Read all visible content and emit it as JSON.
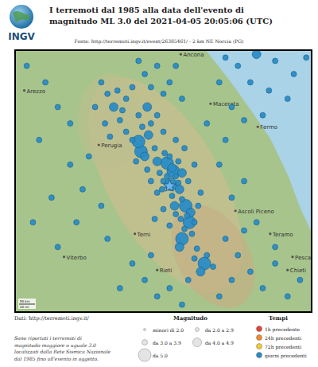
{
  "chart_data": {
    "type": "scatter",
    "logo": "INGV",
    "title": [
      "I terremoti dal 1985 alla data dell'evento di",
      "magnitudo ML 3.0 del 2021-04-05 20:05:06 (UTC)"
    ],
    "source": "Fonte: http://terremoti.ingv.it/event/26385461/ - 2 km NE Norcia (PG)",
    "credit": "Dati: http://terremoti.ingv.it/",
    "note": [
      "Sono riportati i terremoti di",
      "magnitudo maggiore o uguale 3.0",
      "localizzati dalla Rete Sismica Nazionale",
      "dal 1985 fino all'evento in oggetto."
    ],
    "xlim": [
      11.85,
      14.25
    ],
    "ylim": [
      42.05,
      43.65
    ],
    "tick_labels": false,
    "scale_bar": [
      "50 km",
      "20 mi"
    ],
    "event": {
      "x": 13.1,
      "y": 42.82,
      "marker": "star",
      "color": "#6bb8e8"
    },
    "cities": [
      {
        "name": "Arezzo",
        "x": 11.93,
        "y": 43.4
      },
      {
        "name": "Ancona",
        "x": 13.19,
        "y": 43.62
      },
      {
        "name": "Macerata",
        "x": 13.43,
        "y": 43.32
      },
      {
        "name": "Perugia",
        "x": 12.53,
        "y": 43.07
      },
      {
        "name": "Fermo",
        "x": 13.81,
        "y": 43.18
      },
      {
        "name": "Ascoli Piceno",
        "x": 13.63,
        "y": 42.67
      },
      {
        "name": "Teramo",
        "x": 13.91,
        "y": 42.53
      },
      {
        "name": "Terni",
        "x": 12.82,
        "y": 42.53
      },
      {
        "name": "Pescara",
        "x": 14.09,
        "y": 42.39
      },
      {
        "name": "Viterbo",
        "x": 12.25,
        "y": 42.39
      },
      {
        "name": "Rieti",
        "x": 13.0,
        "y": 42.31
      },
      {
        "name": "Chieti",
        "x": 14.05,
        "y": 42.31
      }
    ],
    "magnitude_legend": {
      "title": "Magnitudo",
      "classes": [
        {
          "label": "minori di 2.0",
          "min": null
        },
        {
          "label": "da 2.0 a 2.9",
          "min": 2.0
        },
        {
          "label": "da 3.0 a 3.9",
          "min": 3.0
        },
        {
          "label": "da 4.0 a 4.9",
          "min": 4.0
        },
        {
          "label": "da 5.0",
          "min": 5.0
        }
      ]
    },
    "time_legend": {
      "title": "Tempi",
      "classes": [
        {
          "label": "1h precedente",
          "color": "#e0463a"
        },
        {
          "label": "24h precedenti",
          "color": "#f08a2e"
        },
        {
          "label": "72h precedenti",
          "color": "#f3c93c"
        },
        {
          "label": "giorni precedenti",
          "color": "#2b8cc4"
        }
      ]
    },
    "series": [
      {
        "name": "giorni precedenti",
        "points": [
          [
            13.11,
            42.83,
            6.5
          ],
          [
            13.13,
            42.91,
            5.9
          ],
          [
            13.23,
            42.7,
            6.0
          ],
          [
            13.2,
            42.5,
            5.5
          ],
          [
            13.38,
            42.35,
            6.1
          ],
          [
            12.87,
            43.03,
            6.0
          ],
          [
            12.85,
            43.09,
            5.7
          ],
          [
            13.08,
            42.96,
            5.4
          ],
          [
            12.93,
            43.13,
            4.7
          ],
          [
            13.26,
            42.6,
            5.0
          ],
          [
            13.05,
            42.85,
            3.4
          ],
          [
            13.15,
            42.88,
            3.8
          ],
          [
            13.18,
            42.8,
            4.2
          ],
          [
            13.12,
            42.76,
            3.3
          ],
          [
            13.2,
            42.74,
            3.6
          ],
          [
            13.27,
            42.66,
            4.1
          ],
          [
            13.24,
            42.64,
            3.2
          ],
          [
            13.3,
            42.6,
            3.5
          ],
          [
            13.22,
            42.56,
            3.7
          ],
          [
            13.28,
            42.53,
            3.1
          ],
          [
            13.18,
            42.45,
            4.0
          ],
          [
            13.32,
            42.44,
            3.3
          ],
          [
            13.4,
            42.4,
            3.9
          ],
          [
            13.45,
            42.33,
            3.2
          ],
          [
            13.35,
            42.3,
            4.4
          ],
          [
            13.3,
            42.38,
            3.5
          ],
          [
            13.02,
            42.9,
            3.6
          ],
          [
            13.0,
            42.97,
            4.3
          ],
          [
            13.06,
            43.02,
            3.2
          ],
          [
            12.98,
            43.05,
            3.8
          ],
          [
            13.1,
            43.0,
            3.4
          ],
          [
            13.17,
            42.97,
            3.1
          ],
          [
            13.2,
            42.9,
            4.5
          ],
          [
            13.25,
            42.85,
            3.3
          ],
          [
            13.0,
            42.78,
            3.7
          ],
          [
            12.95,
            42.85,
            3.2
          ],
          [
            12.92,
            42.92,
            3.5
          ],
          [
            12.9,
            43.0,
            4.1
          ],
          [
            12.83,
            42.97,
            3.3
          ],
          [
            12.8,
            43.1,
            3.6
          ],
          [
            12.88,
            43.18,
            3.4
          ],
          [
            12.95,
            43.2,
            3.9
          ],
          [
            12.85,
            43.25,
            3.2
          ],
          [
            12.92,
            43.3,
            4.2
          ],
          [
            13.0,
            43.25,
            3.1
          ],
          [
            13.05,
            43.15,
            3.5
          ],
          [
            13.15,
            43.1,
            3.3
          ],
          [
            13.22,
            43.05,
            3.8
          ],
          [
            13.3,
            42.95,
            3.2
          ],
          [
            13.35,
            42.78,
            3.6
          ],
          [
            13.15,
            42.65,
            3.4
          ],
          [
            13.1,
            42.58,
            3.9
          ],
          [
            13.05,
            42.68,
            3.1
          ],
          [
            12.98,
            42.62,
            3.5
          ],
          [
            13.14,
            42.7,
            4.6
          ],
          [
            13.08,
            42.88,
            3.3
          ],
          [
            13.17,
            42.84,
            3.7
          ],
          [
            13.04,
            42.8,
            3.2
          ],
          [
            13.12,
            42.93,
            4.0
          ],
          [
            13.19,
            42.62,
            3.4
          ],
          [
            13.33,
            42.7,
            3.1
          ],
          [
            12.75,
            43.15,
            3.6
          ],
          [
            12.7,
            43.22,
            3.2
          ],
          [
            12.65,
            43.3,
            4.1
          ],
          [
            12.6,
            43.38,
            3.3
          ],
          [
            12.55,
            43.45,
            3.5
          ],
          [
            12.68,
            43.4,
            3.1
          ],
          [
            12.75,
            43.35,
            3.8
          ],
          [
            12.8,
            43.42,
            3.2
          ],
          [
            12.5,
            43.3,
            3.4
          ],
          [
            12.58,
            43.2,
            3.7
          ],
          [
            12.72,
            43.28,
            3.3
          ],
          [
            12.62,
            43.12,
            3.1
          ],
          [
            12.9,
            43.5,
            3.5
          ],
          [
            13.0,
            43.55,
            3.2
          ],
          [
            13.1,
            43.45,
            3.6
          ],
          [
            13.05,
            43.38,
            3.1
          ],
          [
            12.95,
            43.42,
            3.4
          ],
          [
            12.85,
            43.58,
            3.3
          ],
          [
            13.2,
            43.35,
            3.9
          ],
          [
            13.15,
            43.55,
            3.2
          ],
          [
            13.55,
            43.6,
            3.6
          ],
          [
            13.65,
            43.55,
            3.3
          ],
          [
            13.8,
            43.62,
            4.1
          ],
          [
            13.95,
            43.58,
            3.4
          ],
          [
            14.1,
            43.5,
            3.2
          ],
          [
            13.75,
            43.45,
            3.8
          ],
          [
            13.9,
            43.4,
            3.1
          ],
          [
            13.6,
            43.3,
            3.5
          ],
          [
            13.7,
            43.22,
            3.2
          ],
          [
            13.85,
            43.25,
            3.4
          ],
          [
            13.5,
            43.45,
            3.3
          ],
          [
            13.4,
            43.2,
            3.6
          ],
          [
            13.55,
            43.1,
            3.1
          ],
          [
            14.05,
            43.35,
            3.7
          ],
          [
            14.2,
            43.6,
            3.3
          ],
          [
            11.95,
            43.55,
            3.2
          ],
          [
            12.1,
            43.45,
            3.4
          ],
          [
            12.2,
            43.3,
            3.1
          ],
          [
            12.05,
            43.1,
            3.5
          ],
          [
            12.3,
            42.95,
            3.2
          ],
          [
            12.15,
            42.75,
            3.3
          ],
          [
            12.35,
            42.6,
            3.1
          ],
          [
            12.2,
            42.45,
            3.6
          ],
          [
            12.4,
            42.8,
            3.2
          ],
          [
            12.45,
            43.0,
            3.8
          ],
          [
            12.3,
            43.2,
            3.3
          ],
          [
            12.0,
            42.6,
            3.1
          ],
          [
            12.55,
            42.7,
            3.4
          ],
          [
            12.6,
            42.5,
            3.2
          ],
          [
            13.55,
            42.5,
            3.5
          ],
          [
            13.65,
            42.4,
            3.2
          ],
          [
            13.75,
            42.3,
            3.4
          ],
          [
            13.85,
            42.2,
            3.1
          ],
          [
            13.6,
            42.25,
            3.7
          ],
          [
            13.5,
            42.15,
            3.3
          ],
          [
            13.95,
            42.35,
            3.2
          ],
          [
            14.05,
            42.15,
            3.6
          ],
          [
            14.15,
            42.25,
            3.1
          ],
          [
            13.7,
            42.55,
            3.4
          ],
          [
            13.8,
            42.6,
            3.2
          ],
          [
            13.6,
            42.75,
            3.8
          ],
          [
            13.7,
            42.85,
            3.3
          ],
          [
            13.5,
            42.95,
            3.1
          ],
          [
            13.95,
            42.45,
            3.5
          ],
          [
            12.9,
            42.25,
            3.2
          ],
          [
            13.0,
            42.15,
            3.4
          ],
          [
            13.1,
            42.2,
            3.1
          ],
          [
            13.2,
            42.1,
            3.6
          ],
          [
            12.8,
            42.35,
            3.3
          ],
          [
            12.7,
            42.2,
            3.2
          ],
          [
            13.25,
            42.25,
            3.5
          ],
          [
            12.95,
            42.4,
            3.1
          ]
        ]
      }
    ]
  }
}
